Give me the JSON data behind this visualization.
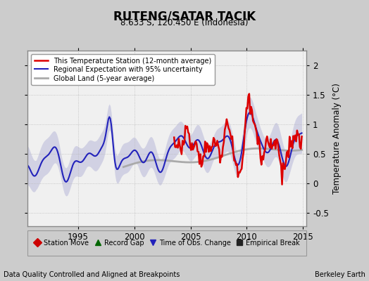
{
  "title": "RUTENG/SATAR TACIK",
  "subtitle": "8.633 S, 120.450 E (Indonesia)",
  "ylabel": "Temperature Anomaly (°C)",
  "footer_left": "Data Quality Controlled and Aligned at Breakpoints",
  "footer_right": "Berkeley Earth",
  "xlim": [
    1990.5,
    2015.3
  ],
  "ylim": [
    -0.72,
    2.25
  ],
  "yticks": [
    -0.5,
    0.0,
    0.5,
    1.0,
    1.5,
    2.0
  ],
  "xticks": [
    1995,
    2000,
    2005,
    2010,
    2015
  ],
  "bg_color": "#cccccc",
  "plot_bg_color": "#f0f0f0",
  "legend_items": [
    {
      "label": "This Temperature Station (12-month average)",
      "color": "#dd0000",
      "lw": 1.8
    },
    {
      "label": "Regional Expectation with 95% uncertainty",
      "color": "#2222bb",
      "lw": 1.5
    },
    {
      "label": "Global Land (5-year average)",
      "color": "#aaaaaa",
      "lw": 2.0
    }
  ],
  "bottom_legend": [
    {
      "label": "Station Move",
      "color": "#cc0000",
      "marker": "D"
    },
    {
      "label": "Record Gap",
      "color": "#006600",
      "marker": "^"
    },
    {
      "label": "Time of Obs. Change",
      "color": "#2222bb",
      "marker": "v"
    },
    {
      "label": "Empirical Break",
      "color": "#222222",
      "marker": "s"
    }
  ],
  "regional_fill_color": "#9999cc",
  "regional_fill_alpha": 0.35,
  "station_start": 2003.5,
  "global_start": 1999.0
}
